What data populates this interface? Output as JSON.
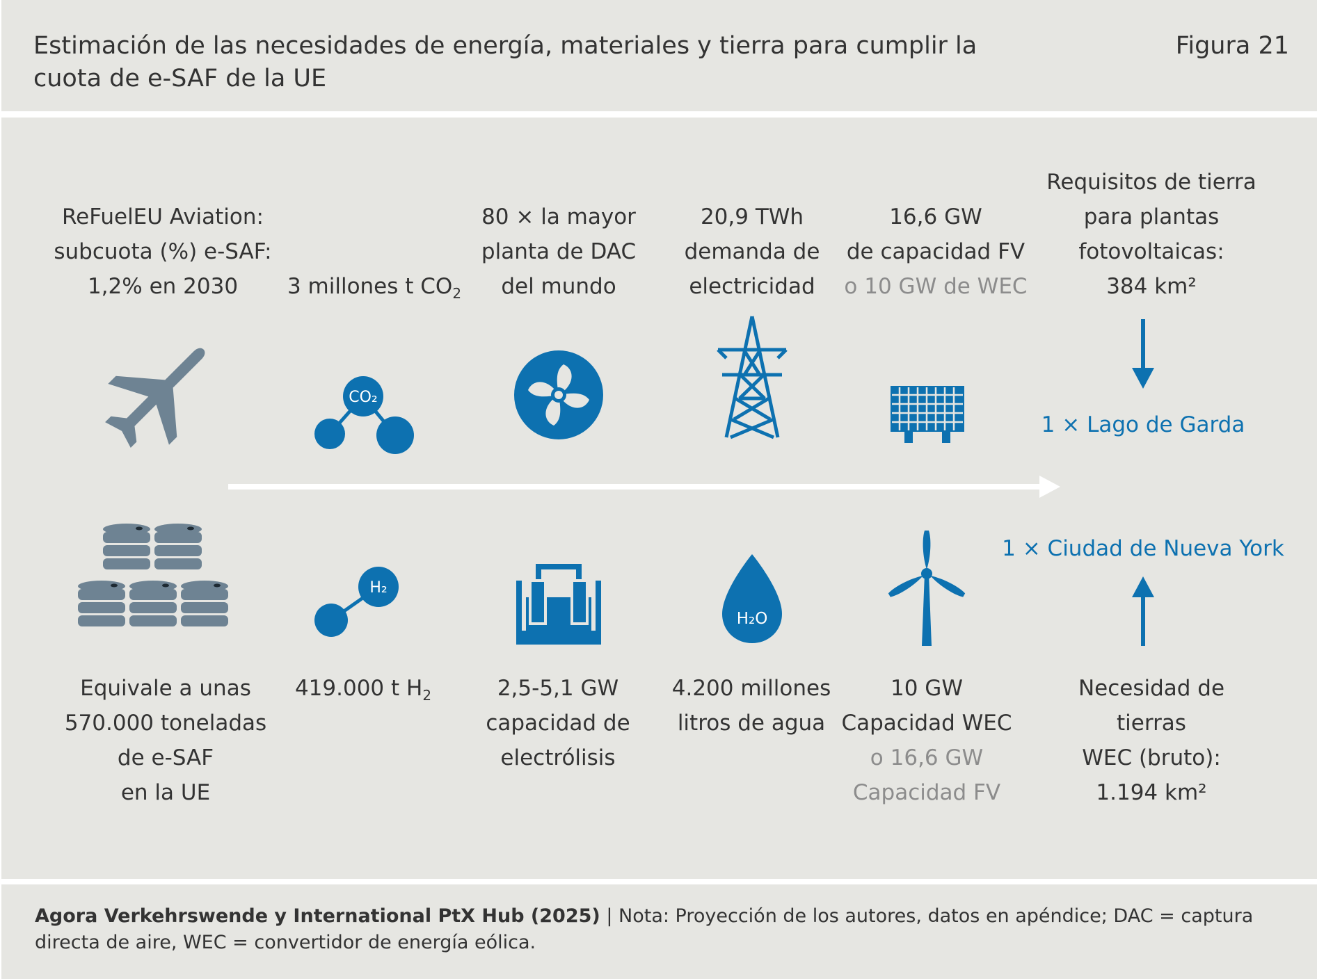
{
  "header": {
    "title": "Estimación de las necesidades de energía, materiales y tierra para cumplir la cuota de e-SAF de la UE",
    "figure_label": "Figura 21"
  },
  "top": {
    "refuel": [
      "ReFuelEU Aviation:",
      "subcuota (%) e-SAF:",
      "1,2% en 2030"
    ],
    "co2": {
      "text": "3 millones t CO",
      "sub": "2"
    },
    "dac": [
      "80 × la mayor",
      "planta de DAC",
      "del mundo"
    ],
    "twh": [
      "20,9 TWh",
      "demanda de",
      "electricidad"
    ],
    "pv": [
      "16,6 GW",
      "de capacidad FV"
    ],
    "pv_alt": "o 10 GW de WEC",
    "land_pv": [
      "Requisitos de tierra",
      "para plantas",
      "fotovoltaicas:",
      "384 km²"
    ],
    "lake": "1 × Lago de Garda"
  },
  "bottom": {
    "esaf": [
      "Equivale a unas",
      "570.000 toneladas",
      "de e-SAF",
      "en la UE"
    ],
    "h2": {
      "text": "419.000 t H",
      "sub": "2"
    },
    "electro": [
      "2,5-5,1 GW",
      "capacidad de",
      "electrólisis"
    ],
    "water": [
      "4.200 millones",
      "litros de agua"
    ],
    "wec": [
      "10 GW",
      "Capacidad WEC"
    ],
    "wec_alt": [
      "o 16,6 GW",
      "Capacidad FV"
    ],
    "land_wec": [
      "Necesidad de",
      "tierras",
      "WEC (bruto):",
      "1.194 km²"
    ],
    "city": "1 × Ciudad de Nueva York"
  },
  "icons": {
    "co2_label": "CO₂",
    "h2_label": "H₂",
    "h2o_label": "H₂O",
    "names": [
      "airplane-icon",
      "co2-molecule-icon",
      "fan-icon",
      "pylon-icon",
      "solar-panel-icon",
      "barrels-icon",
      "h2-molecule-icon",
      "electrolyzer-icon",
      "water-drop-icon",
      "wind-turbine-icon"
    ]
  },
  "colors": {
    "background": "#e6e6e2",
    "accent_blue": "#0d71b0",
    "slate": "#6e8393",
    "text": "#333333",
    "muted": "#8c8c8c"
  },
  "footer": {
    "source_bold": "Agora Verkehrswende y International PtX Hub (2025)",
    "separator": " | ",
    "note": "Nota: Proyección de los autores, datos en apéndice; DAC = captura directa de aire, WEC = convertidor de energía eólica."
  }
}
